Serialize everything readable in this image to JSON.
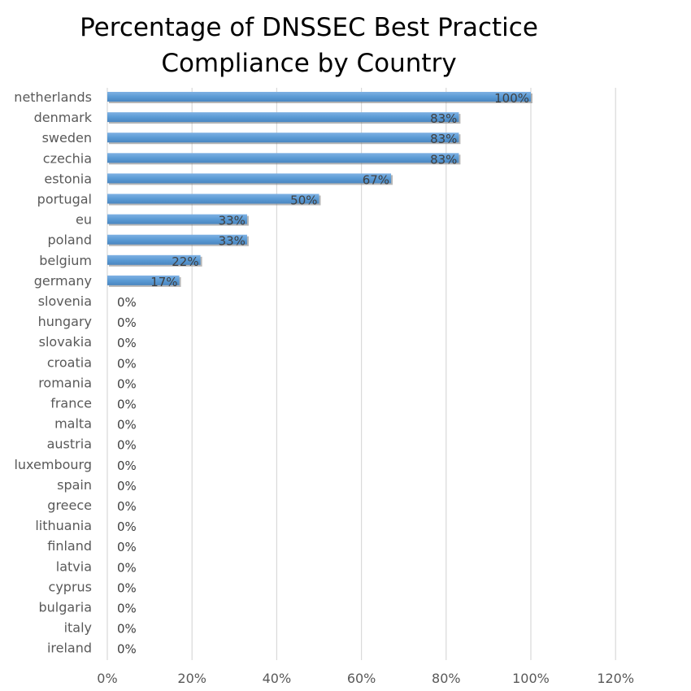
{
  "chart_data": {
    "type": "bar",
    "orientation": "horizontal",
    "title_lines": [
      "Percentage of DNSSEC Best Practice",
      "Compliance by Country"
    ],
    "categories": [
      "netherlands",
      "denmark",
      "sweden",
      "czechia",
      "estonia",
      "portugal",
      "eu",
      "poland",
      "belgium",
      "germany",
      "slovenia",
      "hungary",
      "slovakia",
      "croatia",
      "romania",
      "france",
      "malta",
      "austria",
      "luxembourg",
      "spain",
      "greece",
      "lithuania",
      "finland",
      "latvia",
      "cyprus",
      "bulgaria",
      "italy",
      "ireland"
    ],
    "values": [
      100,
      83,
      83,
      83,
      67,
      50,
      33,
      33,
      22,
      17,
      0,
      0,
      0,
      0,
      0,
      0,
      0,
      0,
      0,
      0,
      0,
      0,
      0,
      0,
      0,
      0,
      0,
      0
    ],
    "data_labels": [
      "100%",
      "83%",
      "83%",
      "83%",
      "67%",
      "50%",
      "33%",
      "33%",
      "22%",
      "17%",
      "0%",
      "0%",
      "0%",
      "0%",
      "0%",
      "0%",
      "0%",
      "0%",
      "0%",
      "0%",
      "0%",
      "0%",
      "0%",
      "0%",
      "0%",
      "0%",
      "0%",
      "0%"
    ],
    "x_ticks": [
      0,
      20,
      40,
      60,
      80,
      100,
      120
    ],
    "x_tick_labels": [
      "0%",
      "20%",
      "40%",
      "60%",
      "80%",
      "100%",
      "120%"
    ],
    "xlim": [
      0,
      120
    ],
    "xlabel": "",
    "ylabel": "",
    "grid": "vertical",
    "legend": "none",
    "bar_color": "#5B9BD5"
  }
}
